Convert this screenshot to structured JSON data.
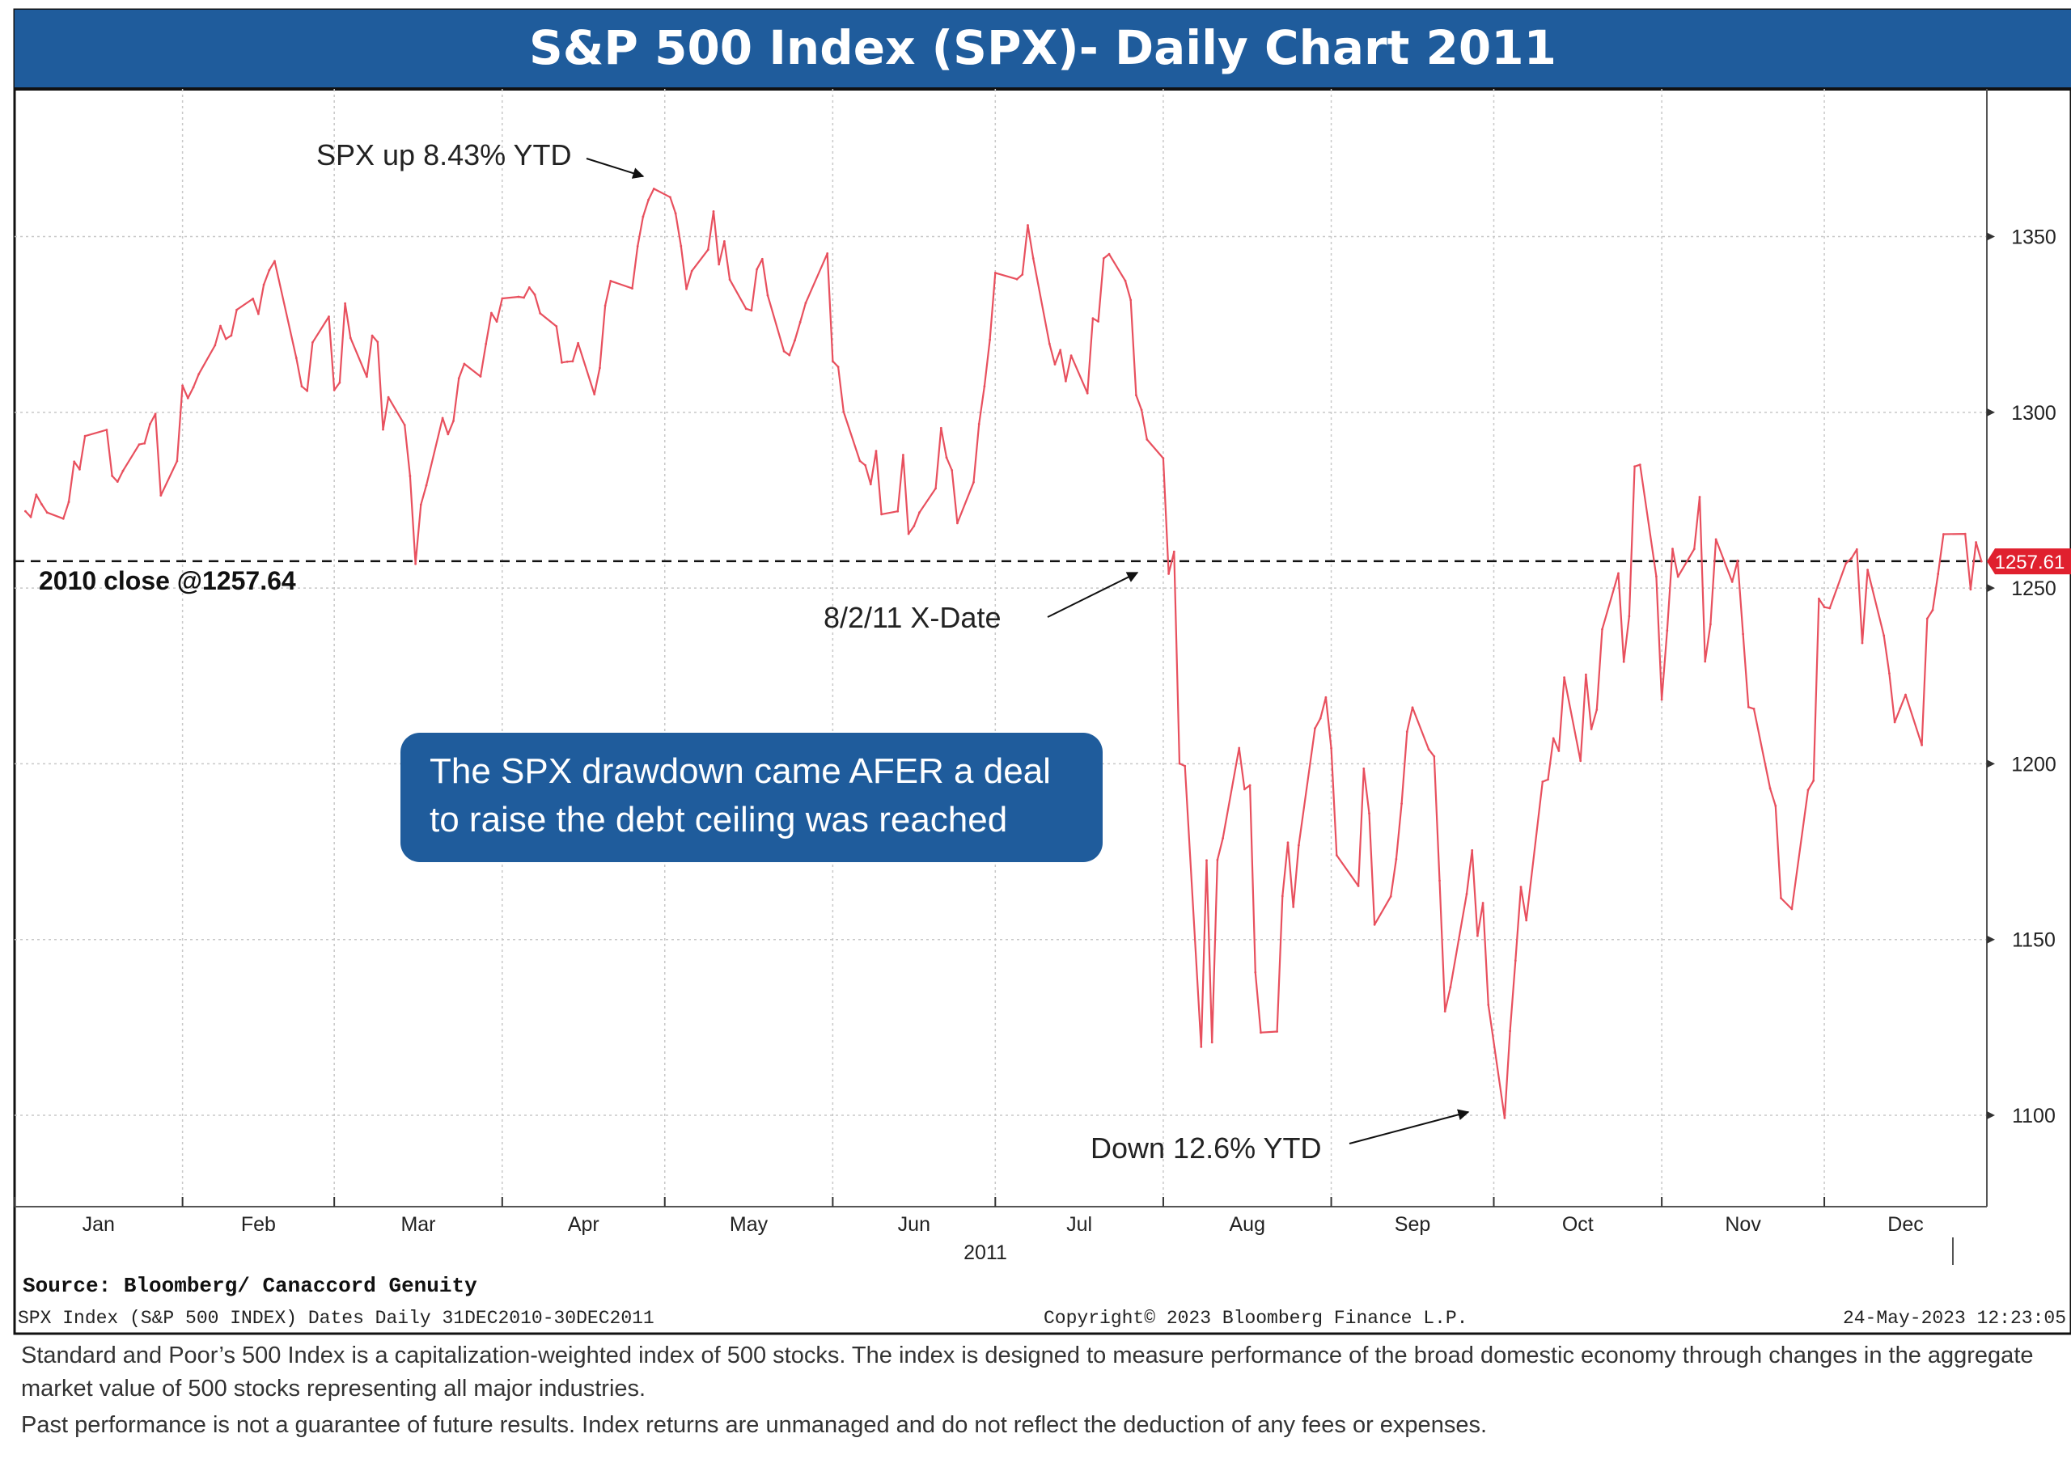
{
  "title": "S&P 500 Index (SPX)- Daily Chart 2011",
  "colors": {
    "header": "#1f5c9c",
    "line": "#e8505e",
    "callout": "#1f5c9c",
    "price_tag": "#e0202e"
  },
  "chart_data": {
    "type": "line",
    "title": "S&P 500 Index (SPX)- Daily Chart 2011",
    "x_tick_labels": [
      "Jan",
      "Feb",
      "Mar",
      "Apr",
      "May",
      "Jun",
      "Jul",
      "Aug",
      "Sep",
      "Oct",
      "Nov",
      "Dec"
    ],
    "year_label": "2011",
    "y_ticks": [
      1100,
      1150,
      1200,
      1250,
      1300,
      1350
    ],
    "ylim": [
      1074,
      1392
    ],
    "grid": true,
    "last_value_label": "1257.61",
    "reference_line": {
      "value": 1257.64,
      "label": "2010 close @1257.64"
    },
    "series": [
      {
        "x": [
          "2011-01-03",
          "2011-01-04",
          "2011-01-05",
          "2011-01-06",
          "2011-01-07",
          "2011-01-10",
          "2011-01-11",
          "2011-01-12",
          "2011-01-13",
          "2011-01-14",
          "2011-01-18",
          "2011-01-19",
          "2011-01-20",
          "2011-01-21",
          "2011-01-24",
          "2011-01-25",
          "2011-01-26",
          "2011-01-27",
          "2011-01-28",
          "2011-01-31",
          "2011-02-01",
          "2011-02-02",
          "2011-02-03",
          "2011-02-04",
          "2011-02-07",
          "2011-02-08",
          "2011-02-09",
          "2011-02-10",
          "2011-02-11",
          "2011-02-14",
          "2011-02-15",
          "2011-02-16",
          "2011-02-17",
          "2011-02-18",
          "2011-02-22",
          "2011-02-23",
          "2011-02-24",
          "2011-02-25",
          "2011-02-28",
          "2011-03-01",
          "2011-03-02",
          "2011-03-03",
          "2011-03-04",
          "2011-03-07",
          "2011-03-08",
          "2011-03-09",
          "2011-03-10",
          "2011-03-11",
          "2011-03-14",
          "2011-03-15",
          "2011-03-16",
          "2011-03-17",
          "2011-03-18",
          "2011-03-21",
          "2011-03-22",
          "2011-03-23",
          "2011-03-24",
          "2011-03-25",
          "2011-03-28",
          "2011-03-29",
          "2011-03-30",
          "2011-03-31",
          "2011-04-01",
          "2011-04-04",
          "2011-04-05",
          "2011-04-06",
          "2011-04-07",
          "2011-04-08",
          "2011-04-11",
          "2011-04-12",
          "2011-04-13",
          "2011-04-14",
          "2011-04-15",
          "2011-04-18",
          "2011-04-19",
          "2011-04-20",
          "2011-04-21",
          "2011-04-25",
          "2011-04-26",
          "2011-04-27",
          "2011-04-28",
          "2011-04-29",
          "2011-05-02",
          "2011-05-03",
          "2011-05-04",
          "2011-05-05",
          "2011-05-06",
          "2011-05-09",
          "2011-05-10",
          "2011-05-11",
          "2011-05-12",
          "2011-05-13",
          "2011-05-16",
          "2011-05-17",
          "2011-05-18",
          "2011-05-19",
          "2011-05-20",
          "2011-05-23",
          "2011-05-24",
          "2011-05-25",
          "2011-05-26",
          "2011-05-27",
          "2011-05-31",
          "2011-06-01",
          "2011-06-02",
          "2011-06-03",
          "2011-06-06",
          "2011-06-07",
          "2011-06-08",
          "2011-06-09",
          "2011-06-10",
          "2011-06-13",
          "2011-06-14",
          "2011-06-15",
          "2011-06-16",
          "2011-06-17",
          "2011-06-20",
          "2011-06-21",
          "2011-06-22",
          "2011-06-23",
          "2011-06-24",
          "2011-06-27",
          "2011-06-28",
          "2011-06-29",
          "2011-06-30",
          "2011-07-01",
          "2011-07-05",
          "2011-07-06",
          "2011-07-07",
          "2011-07-08",
          "2011-07-11",
          "2011-07-12",
          "2011-07-13",
          "2011-07-14",
          "2011-07-15",
          "2011-07-18",
          "2011-07-19",
          "2011-07-20",
          "2011-07-21",
          "2011-07-22",
          "2011-07-25",
          "2011-07-26",
          "2011-07-27",
          "2011-07-28",
          "2011-07-29",
          "2011-08-01",
          "2011-08-02",
          "2011-08-03",
          "2011-08-04",
          "2011-08-05",
          "2011-08-08",
          "2011-08-09",
          "2011-08-10",
          "2011-08-11",
          "2011-08-12",
          "2011-08-15",
          "2011-08-16",
          "2011-08-17",
          "2011-08-18",
          "2011-08-19",
          "2011-08-22",
          "2011-08-23",
          "2011-08-24",
          "2011-08-25",
          "2011-08-26",
          "2011-08-29",
          "2011-08-30",
          "2011-08-31",
          "2011-09-01",
          "2011-09-02",
          "2011-09-06",
          "2011-09-07",
          "2011-09-08",
          "2011-09-09",
          "2011-09-12",
          "2011-09-13",
          "2011-09-14",
          "2011-09-15",
          "2011-09-16",
          "2011-09-19",
          "2011-09-20",
          "2011-09-21",
          "2011-09-22",
          "2011-09-23",
          "2011-09-26",
          "2011-09-27",
          "2011-09-28",
          "2011-09-29",
          "2011-09-30",
          "2011-10-03",
          "2011-10-04",
          "2011-10-05",
          "2011-10-06",
          "2011-10-07",
          "2011-10-10",
          "2011-10-11",
          "2011-10-12",
          "2011-10-13",
          "2011-10-14",
          "2011-10-17",
          "2011-10-18",
          "2011-10-19",
          "2011-10-20",
          "2011-10-21",
          "2011-10-24",
          "2011-10-25",
          "2011-10-26",
          "2011-10-27",
          "2011-10-28",
          "2011-10-31",
          "2011-11-01",
          "2011-11-02",
          "2011-11-03",
          "2011-11-04",
          "2011-11-07",
          "2011-11-08",
          "2011-11-09",
          "2011-11-10",
          "2011-11-11",
          "2011-11-14",
          "2011-11-15",
          "2011-11-16",
          "2011-11-17",
          "2011-11-18",
          "2011-11-21",
          "2011-11-22",
          "2011-11-23",
          "2011-11-25",
          "2011-11-28",
          "2011-11-29",
          "2011-11-30",
          "2011-12-01",
          "2011-12-02",
          "2011-12-05",
          "2011-12-06",
          "2011-12-07",
          "2011-12-08",
          "2011-12-09",
          "2011-12-12",
          "2011-12-13",
          "2011-12-14",
          "2011-12-15",
          "2011-12-16",
          "2011-12-19",
          "2011-12-20",
          "2011-12-21",
          "2011-12-22",
          "2011-12-23",
          "2011-12-27",
          "2011-12-28",
          "2011-12-29",
          "2011-12-30"
        ],
        "y": [
          1271.87,
          1270.2,
          1276.56,
          1273.85,
          1271.5,
          1269.75,
          1274.48,
          1285.96,
          1283.76,
          1293.24,
          1295.02,
          1281.92,
          1280.26,
          1283.35,
          1290.84,
          1291.18,
          1296.63,
          1299.54,
          1276.34,
          1286.12,
          1307.59,
          1304.03,
          1307.1,
          1310.87,
          1319.05,
          1324.57,
          1320.88,
          1321.87,
          1329.15,
          1332.32,
          1328.01,
          1336.32,
          1340.43,
          1343.01,
          1315.44,
          1307.4,
          1306.1,
          1319.88,
          1327.22,
          1306.33,
          1308.44,
          1330.97,
          1321.15,
          1310.13,
          1321.82,
          1320.02,
          1295.11,
          1304.28,
          1296.39,
          1281.87,
          1256.88,
          1273.72,
          1279.21,
          1298.38,
          1293.77,
          1297.54,
          1309.66,
          1313.8,
          1310.19,
          1319.44,
          1328.26,
          1325.83,
          1332.41,
          1332.87,
          1332.63,
          1335.54,
          1333.51,
          1328.17,
          1324.46,
          1314.16,
          1314.41,
          1314.52,
          1319.68,
          1305.14,
          1312.62,
          1330.36,
          1337.38,
          1335.25,
          1347.24,
          1355.66,
          1360.48,
          1363.61,
          1361.22,
          1356.62,
          1347.32,
          1335.1,
          1340.2,
          1346.29,
          1357.16,
          1342.08,
          1348.65,
          1337.77,
          1329.47,
          1328.98,
          1340.68,
          1343.6,
          1333.27,
          1317.37,
          1316.28,
          1320.47,
          1325.69,
          1331.1,
          1345.2,
          1314.55,
          1312.94,
          1300.16,
          1286.17,
          1284.94,
          1279.56,
          1289.0,
          1270.98,
          1271.83,
          1287.87,
          1265.42,
          1267.64,
          1271.5,
          1278.36,
          1295.52,
          1287.14,
          1283.5,
          1268.45,
          1280.1,
          1296.67,
          1307.41,
          1320.64,
          1339.67,
          1337.88,
          1339.22,
          1353.22,
          1343.8,
          1319.49,
          1313.64,
          1317.72,
          1308.87,
          1316.14,
          1305.44,
          1326.73,
          1325.84,
          1343.8,
          1345.02,
          1337.43,
          1331.94,
          1304.89,
          1300.67,
          1292.28,
          1286.94,
          1254.05,
          1260.34,
          1200.07,
          1199.38,
          1119.46,
          1172.53,
          1120.76,
          1172.64,
          1178.81,
          1204.49,
          1192.76,
          1193.89,
          1140.65,
          1123.53,
          1123.82,
          1162.35,
          1177.6,
          1159.27,
          1176.8,
          1210.08,
          1212.92,
          1218.89,
          1204.42,
          1173.97,
          1165.24,
          1198.62,
          1185.9,
          1154.23,
          1162.27,
          1172.87,
          1188.68,
          1209.11,
          1216.01,
          1204.09,
          1202.09,
          1166.76,
          1129.56,
          1136.43,
          1162.95,
          1175.38,
          1151.06,
          1160.4,
          1131.42,
          1099.23,
          1123.95,
          1144.03,
          1164.97,
          1155.46,
          1194.89,
          1195.54,
          1207.25,
          1203.66,
          1224.58,
          1200.86,
          1225.38,
          1209.88,
          1215.39,
          1238.25,
          1254.19,
          1229.05,
          1242.0,
          1284.59,
          1285.09,
          1253.3,
          1218.28,
          1237.9,
          1261.15,
          1253.23,
          1261.12,
          1275.92,
          1229.1,
          1239.7,
          1263.85,
          1251.78,
          1257.81,
          1236.91,
          1216.13,
          1215.65,
          1192.98,
          1188.04,
          1161.79,
          1158.67,
          1192.55,
          1195.19,
          1246.96,
          1244.58,
          1244.28,
          1257.08,
          1258.47,
          1261.01,
          1234.35,
          1255.19,
          1236.47,
          1225.73,
          1211.82,
          1215.75,
          1219.66,
          1205.35,
          1241.3,
          1243.72,
          1254.0,
          1265.33,
          1265.43,
          1249.64,
          1263.02,
          1257.6
        ]
      }
    ],
    "annotations": [
      {
        "text": "SPX up 8.43% YTD",
        "x": "2011-04-29",
        "y": 1363.61
      },
      {
        "text": "8/2/11 X-Date",
        "x": "2011-08-02",
        "y": 1254.05
      },
      {
        "text": "Down 12.6% YTD",
        "x": "2011-10-03",
        "y": 1099.23
      }
    ]
  },
  "callout_line1": "The SPX drawdown came AFER a deal",
  "callout_line2": "to raise the debt ceiling was reached",
  "source": "Source:  Bloomberg/ Canaccord Genuity",
  "meta_left": "SPX Index (S&P 500 INDEX) Dates  Daily 31DEC2010-30DEC2011",
  "meta_center": "Copyright© 2023 Bloomberg Finance L.P.",
  "meta_right": "24-May-2023 12:23:05",
  "footnote1": "Standard and Poor’s 500 Index is a capitalization-weighted index of 500 stocks. The index is designed to measure performance of the broad domestic economy through changes in the aggregate market value of 500 stocks representing all major industries.",
  "footnote2": "Past performance is not a guarantee of future results. Index returns are unmanaged and do not reflect the deduction of any fees or expenses."
}
